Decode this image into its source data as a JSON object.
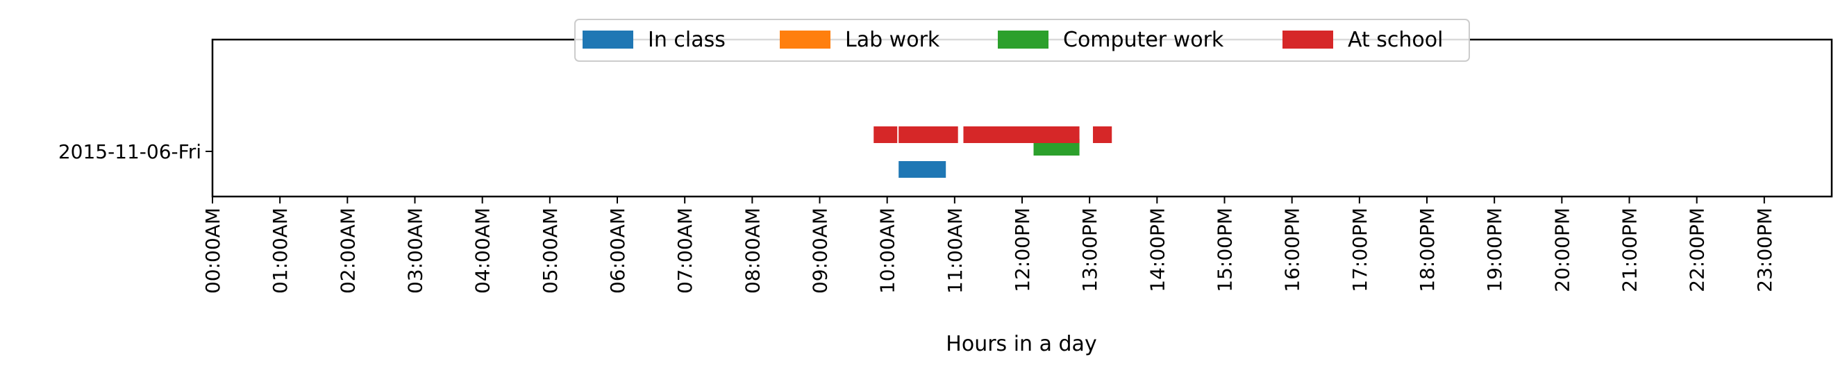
{
  "chart_data": {
    "type": "gantt",
    "xlabel": "Hours in a day",
    "ylabel": "",
    "xlim": [
      0,
      24
    ],
    "x_ticks": [
      "00:00AM",
      "01:00AM",
      "02:00AM",
      "03:00AM",
      "04:00AM",
      "05:00AM",
      "06:00AM",
      "07:00AM",
      "08:00AM",
      "09:00AM",
      "10:00AM",
      "11:00AM",
      "12:00PM",
      "13:00PM",
      "14:00PM",
      "15:00PM",
      "16:00PM",
      "17:00PM",
      "18:00PM",
      "19:00PM",
      "20:00PM",
      "21:00PM",
      "22:00PM",
      "23:00PM"
    ],
    "categories": [
      "2015-11-06-Fri"
    ],
    "legend_position": "top-center",
    "series": [
      {
        "name": "In class",
        "color": "#1f77b4",
        "segments": [
          {
            "day": "2015-11-06-Fri",
            "start_hour": 10.17,
            "end_hour": 10.87
          }
        ]
      },
      {
        "name": "Lab work",
        "color": "#ff7f0e",
        "segments": []
      },
      {
        "name": "Computer work",
        "color": "#2ca02c",
        "segments": [
          {
            "day": "2015-11-06-Fri",
            "start_hour": 12.17,
            "end_hour": 12.85
          }
        ]
      },
      {
        "name": "At school",
        "color": "#d62728",
        "segments": [
          {
            "day": "2015-11-06-Fri",
            "start_hour": 9.8,
            "end_hour": 10.15
          },
          {
            "day": "2015-11-06-Fri",
            "start_hour": 10.17,
            "end_hour": 11.05
          },
          {
            "day": "2015-11-06-Fri",
            "start_hour": 11.13,
            "end_hour": 12.85
          },
          {
            "day": "2015-11-06-Fri",
            "start_hour": 13.05,
            "end_hour": 13.33
          }
        ]
      }
    ]
  }
}
